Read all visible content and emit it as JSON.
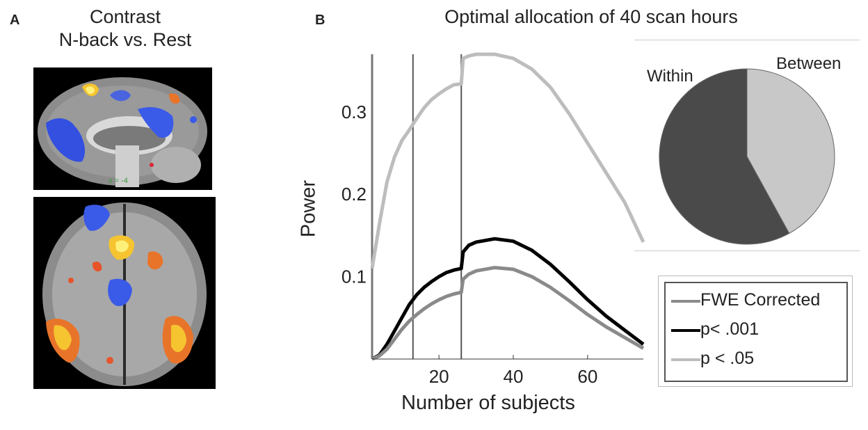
{
  "panels": {
    "a": {
      "letter": "A",
      "title_line1": "Contrast",
      "title_line2": "N-back vs. Rest",
      "slice_label": "x = -4"
    },
    "b": {
      "letter": "B",
      "title": "Optimal allocation of 40 scan hours"
    }
  },
  "legend": {
    "items": [
      {
        "label": "FWE Corrected",
        "color": "#8a8a8a"
      },
      {
        "label": "p< .001",
        "color": "#000000"
      },
      {
        "label": "p < .05",
        "color": "#bdbdbd"
      }
    ]
  },
  "chart_data": [
    {
      "type": "line",
      "xlabel": "Number of subjects",
      "ylabel": "Power",
      "xlim": [
        2,
        75
      ],
      "ylim": [
        0.0,
        0.37
      ],
      "x_ticks": [
        20,
        40,
        60
      ],
      "y_ticks": [
        0.1,
        0.2,
        0.3
      ],
      "vlines": [
        2,
        13,
        26
      ],
      "legend_position": "right",
      "series": [
        {
          "name": "p < .05",
          "color": "#bdbdbd",
          "x": [
            2,
            4,
            6,
            8,
            10,
            12,
            14,
            16,
            18,
            20,
            22,
            24,
            26,
            26.5,
            28,
            30,
            35,
            40,
            45,
            50,
            55,
            60,
            65,
            70,
            75
          ],
          "y": [
            0.11,
            0.165,
            0.215,
            0.245,
            0.265,
            0.278,
            0.292,
            0.305,
            0.315,
            0.322,
            0.328,
            0.333,
            0.334,
            0.365,
            0.368,
            0.37,
            0.37,
            0.365,
            0.352,
            0.33,
            0.298,
            0.262,
            0.226,
            0.19,
            0.142
          ]
        },
        {
          "name": "p< .001",
          "color": "#000000",
          "x": [
            2,
            4,
            6,
            8,
            10,
            12,
            14,
            16,
            18,
            20,
            22,
            24,
            26,
            26.5,
            28,
            30,
            35,
            40,
            45,
            50,
            55,
            60,
            65,
            70,
            75
          ],
          "y": [
            0.0,
            0.005,
            0.018,
            0.034,
            0.05,
            0.066,
            0.078,
            0.087,
            0.094,
            0.1,
            0.105,
            0.108,
            0.11,
            0.13,
            0.138,
            0.142,
            0.146,
            0.143,
            0.132,
            0.115,
            0.094,
            0.072,
            0.052,
            0.035,
            0.018
          ]
        },
        {
          "name": "FWE Corrected",
          "color": "#8a8a8a",
          "x": [
            2,
            4,
            6,
            8,
            10,
            12,
            14,
            16,
            18,
            20,
            22,
            24,
            26,
            26.5,
            28,
            30,
            35,
            40,
            45,
            50,
            55,
            60,
            65,
            70,
            75
          ],
          "y": [
            0.0,
            0.004,
            0.012,
            0.024,
            0.036,
            0.046,
            0.054,
            0.061,
            0.067,
            0.072,
            0.076,
            0.079,
            0.081,
            0.097,
            0.103,
            0.107,
            0.111,
            0.109,
            0.1,
            0.087,
            0.071,
            0.054,
            0.039,
            0.026,
            0.013
          ]
        }
      ]
    },
    {
      "type": "pie",
      "labels": [
        "Within",
        "Between"
      ],
      "values": [
        58,
        42
      ],
      "colors": [
        "#4a4a4a",
        "#c8c8c8"
      ]
    }
  ]
}
